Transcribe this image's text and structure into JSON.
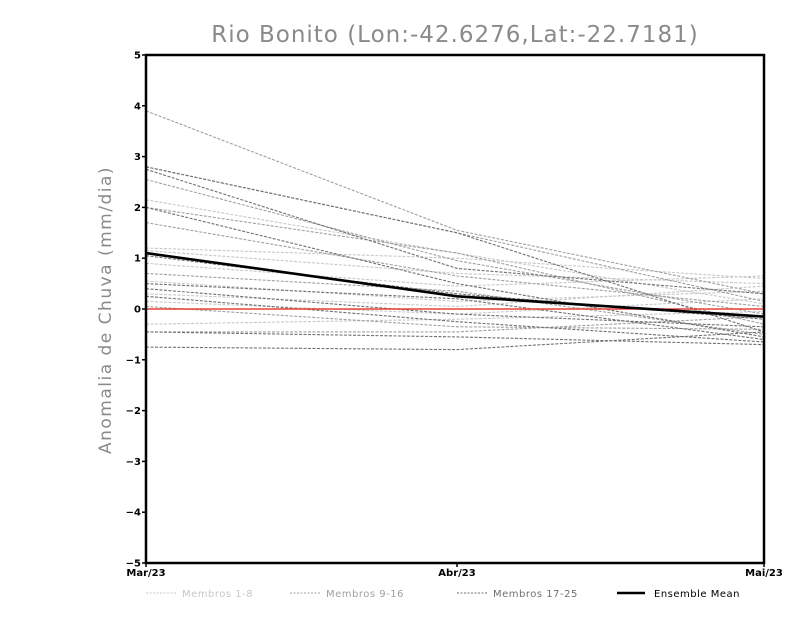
{
  "chart_data": {
    "type": "line",
    "title": "Rio Bonito (Lon:-42.6276,Lat:-22.7181)",
    "ylabel": "Anomalia de Chuva (mm/dia)",
    "xlabel": "",
    "categories": [
      "Mar/23",
      "Abr/23",
      "Mai/23"
    ],
    "ylim": [
      -5,
      5
    ],
    "yticks": [
      5,
      4,
      3,
      2,
      1,
      0,
      -1,
      -2,
      -3,
      -4,
      -5
    ],
    "reference_line": {
      "y": 0,
      "color": "#e8403a"
    },
    "groups": [
      {
        "name": "Membros 1-8",
        "color": "#c8c8c8",
        "style": "dashed"
      },
      {
        "name": "Membros 9-16",
        "color": "#a0a0a0",
        "style": "dashed"
      },
      {
        "name": "Membros 17-25",
        "color": "#707070",
        "style": "dashed"
      },
      {
        "name": "Ensemble Mean",
        "color": "#000000",
        "style": "solid"
      }
    ],
    "series": [
      {
        "group": 0,
        "values": [
          2.15,
          1.1,
          0.1
        ]
      },
      {
        "group": 0,
        "values": [
          1.2,
          1.0,
          0.6
        ]
      },
      {
        "group": 0,
        "values": [
          1.15,
          0.7,
          0.5
        ]
      },
      {
        "group": 0,
        "values": [
          0.9,
          0.45,
          0.65
        ]
      },
      {
        "group": 0,
        "values": [
          0.55,
          0.15,
          0.35
        ]
      },
      {
        "group": 0,
        "values": [
          0.3,
          0.05,
          0.45
        ]
      },
      {
        "group": 0,
        "values": [
          0.15,
          -0.1,
          0.2
        ]
      },
      {
        "group": 0,
        "values": [
          -0.3,
          -0.2,
          -0.05
        ]
      },
      {
        "group": 1,
        "values": [
          3.9,
          1.55,
          0.3
        ]
      },
      {
        "group": 1,
        "values": [
          2.8,
          1.5,
          0.15
        ]
      },
      {
        "group": 1,
        "values": [
          2.55,
          0.95,
          -0.1
        ]
      },
      {
        "group": 1,
        "values": [
          2.0,
          1.1,
          -0.3
        ]
      },
      {
        "group": 1,
        "values": [
          1.7,
          0.65,
          0.05
        ]
      },
      {
        "group": 1,
        "values": [
          0.7,
          0.35,
          -0.5
        ]
      },
      {
        "group": 1,
        "values": [
          0.05,
          -0.35,
          -0.4
        ]
      },
      {
        "group": 1,
        "values": [
          -0.45,
          -0.45,
          -0.15
        ]
      },
      {
        "group": 2,
        "values": [
          2.8,
          1.5,
          -0.45
        ]
      },
      {
        "group": 2,
        "values": [
          2.75,
          0.8,
          0.3
        ]
      },
      {
        "group": 2,
        "values": [
          2.0,
          0.5,
          -0.55
        ]
      },
      {
        "group": 2,
        "values": [
          1.05,
          0.3,
          -0.2
        ]
      },
      {
        "group": 2,
        "values": [
          0.5,
          0.2,
          -0.6
        ]
      },
      {
        "group": 2,
        "values": [
          0.4,
          -0.1,
          -0.35
        ]
      },
      {
        "group": 2,
        "values": [
          0.25,
          -0.25,
          -0.65
        ]
      },
      {
        "group": 2,
        "values": [
          -0.45,
          -0.55,
          -0.7
        ]
      },
      {
        "group": 2,
        "values": [
          -0.75,
          -0.8,
          -0.45
        ]
      },
      {
        "group": 3,
        "values": [
          1.1,
          0.25,
          -0.15
        ]
      }
    ]
  }
}
